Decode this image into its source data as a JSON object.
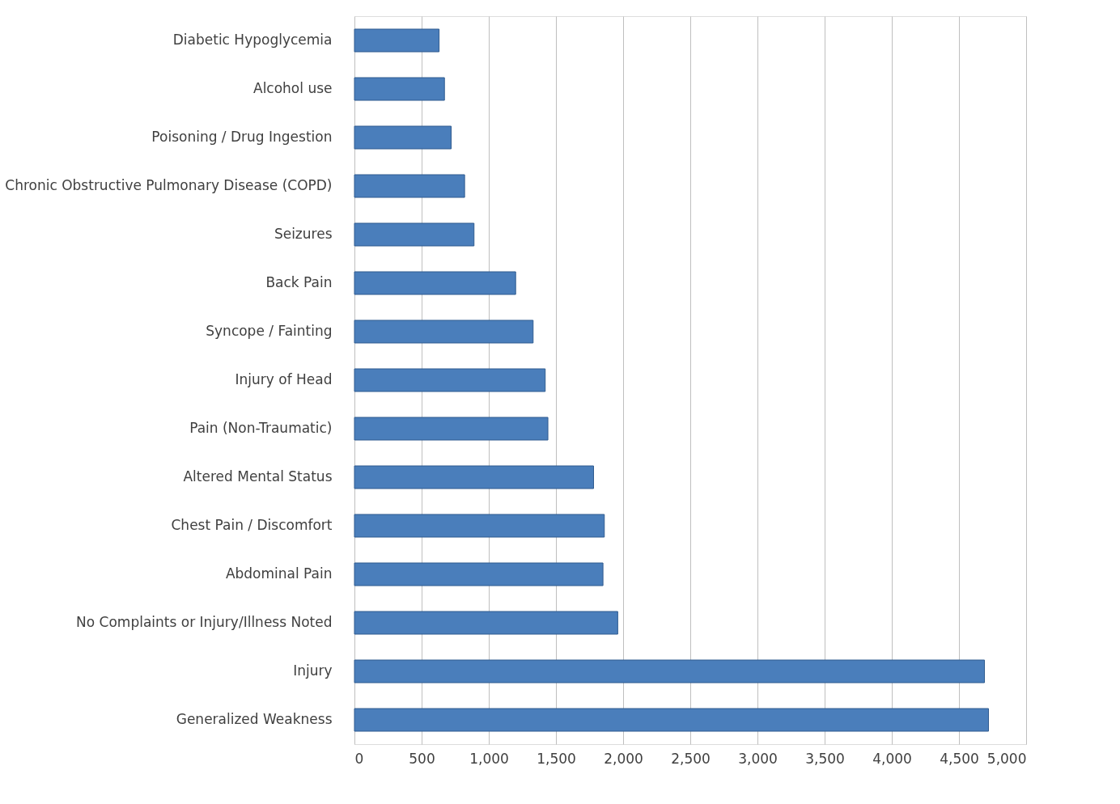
{
  "chart_data": {
    "type": "bar",
    "orientation": "horizontal",
    "categories": [
      "Diabetic Hypoglycemia",
      "Alcohol use",
      "Poisoning / Drug Ingestion",
      "Chronic Obstructive Pulmonary Disease (COPD)",
      "Seizures",
      "Back Pain",
      "Syncope / Fainting",
      "Injury of Head",
      "Pain (Non-Traumatic)",
      "Altered Mental Status",
      "Chest Pain / Discomfort",
      "Abdominal Pain",
      "No Complaints or Injury/Illness Noted",
      "Injury",
      "Generalized Weakness"
    ],
    "values": [
      630,
      670,
      720,
      820,
      890,
      1200,
      1330,
      1420,
      1440,
      1780,
      1860,
      1850,
      1960,
      4690,
      4720
    ],
    "color": "#4a7ebb",
    "xlim": [
      0,
      5000
    ],
    "xticks": [
      0,
      500,
      {
        "value": 1000,
        "label": "1,000"
      },
      {
        "value": 1500,
        "label": "1,500"
      },
      {
        "value": 2000,
        "label": "2,000"
      },
      {
        "value": 2500,
        "label": "2,500"
      },
      {
        "value": 3000,
        "label": "3,000"
      },
      {
        "value": 3500,
        "label": "3,500"
      },
      {
        "value": 4000,
        "label": "4,000"
      },
      {
        "value": 4500,
        "label": "4,500"
      },
      {
        "value": 5000,
        "label": "5,000"
      }
    ],
    "grid": "x"
  }
}
